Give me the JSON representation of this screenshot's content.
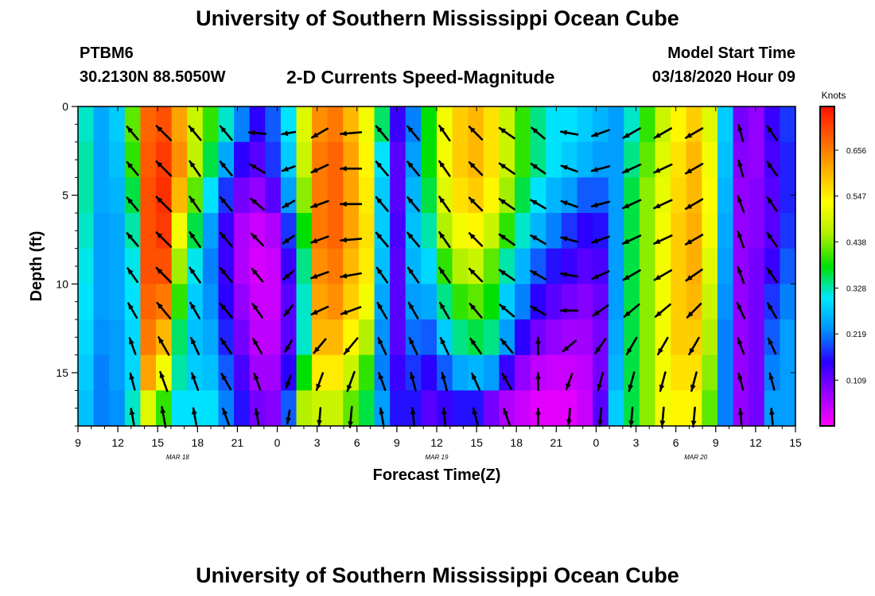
{
  "header": {
    "title": "University of Southern Mississippi Ocean Cube",
    "station_id": "PTBM6",
    "station_coords": "30.2130N 88.5050W",
    "subtitle": "2-D Currents Speed-Magnitude",
    "model_start_label": "Model Start Time",
    "model_start_value": "03/18/2020 Hour 09"
  },
  "footer": {
    "title": "University of Southern Mississippi Ocean Cube"
  },
  "chart_data": {
    "type": "heatmap",
    "title": "2-D Currents Speed-Magnitude",
    "xlabel": "Forecast Time(Z)",
    "ylabel": "Depth (ft)",
    "x_range_hours": [
      0,
      54
    ],
    "x_ticks": [
      "9",
      "12",
      "15",
      "18",
      "21",
      "0",
      "3",
      "6",
      "9",
      "12",
      "15",
      "18",
      "21",
      "0",
      "3",
      "6",
      "9",
      "12",
      "15"
    ],
    "date_labels": [
      "MAR 18",
      "MAR 19",
      "MAR 20"
    ],
    "y_ticks": [
      "0",
      "5",
      "10",
      "15"
    ],
    "y_range": [
      0,
      18
    ],
    "y_inverted": true,
    "colorbar": {
      "label": "Knots",
      "ticks": [
        "0.656",
        "0.547",
        "0.438",
        "0.328",
        "0.219",
        "0.109"
      ],
      "range": [
        0,
        0.76
      ],
      "colors": [
        "#ff00ff",
        "#9a00ff",
        "#2800ff",
        "#0090ff",
        "#00e8ff",
        "#00e000",
        "#b0f000",
        "#ffff00",
        "#ffb000",
        "#ff6000",
        "#ff1000"
      ]
    },
    "speed_columns": [
      {
        "t": 0,
        "speeds": [
          0.32,
          0.33,
          0.33,
          0.32,
          0.31,
          0.3,
          0.29,
          0.28,
          0.27
        ]
      },
      {
        "t": 1,
        "speeds": [
          0.25,
          0.25,
          0.25,
          0.24,
          0.24,
          0.24,
          0.23,
          0.22,
          0.22
        ]
      },
      {
        "t": 2,
        "speeds": [
          0.28,
          0.27,
          0.26,
          0.25,
          0.25,
          0.25,
          0.24,
          0.24,
          0.23
        ]
      },
      {
        "t": 3,
        "speeds": [
          0.42,
          0.4,
          0.36,
          0.33,
          0.31,
          0.3,
          0.29,
          0.29,
          0.32
        ]
      },
      {
        "t": 4,
        "speeds": [
          0.68,
          0.69,
          0.7,
          0.7,
          0.7,
          0.68,
          0.66,
          0.62,
          0.5
        ]
      },
      {
        "t": 5,
        "speeds": [
          0.7,
          0.72,
          0.73,
          0.72,
          0.7,
          0.66,
          0.6,
          0.52,
          0.4
        ]
      },
      {
        "t": 6,
        "speeds": [
          0.62,
          0.64,
          0.6,
          0.52,
          0.45,
          0.4,
          0.35,
          0.33,
          0.3
        ]
      },
      {
        "t": 7,
        "speeds": [
          0.48,
          0.47,
          0.42,
          0.36,
          0.31,
          0.28,
          0.27,
          0.28,
          0.3
        ]
      },
      {
        "t": 8,
        "speeds": [
          0.4,
          0.36,
          0.3,
          0.24,
          0.22,
          0.23,
          0.25,
          0.27,
          0.3
        ]
      },
      {
        "t": 9,
        "speeds": [
          0.32,
          0.25,
          0.18,
          0.14,
          0.14,
          0.15,
          0.17,
          0.2,
          0.22
        ]
      },
      {
        "t": 10,
        "speeds": [
          0.22,
          0.15,
          0.1,
          0.06,
          0.06,
          0.08,
          0.1,
          0.13,
          0.16
        ]
      },
      {
        "t": 11,
        "speeds": [
          0.15,
          0.12,
          0.08,
          0.04,
          0.03,
          0.04,
          0.05,
          0.07,
          0.1
        ]
      },
      {
        "t": 12,
        "speeds": [
          0.2,
          0.18,
          0.12,
          0.06,
          0.04,
          0.04,
          0.05,
          0.07,
          0.09
        ]
      },
      {
        "t": 13,
        "speeds": [
          0.3,
          0.28,
          0.24,
          0.18,
          0.14,
          0.12,
          0.12,
          0.15,
          0.2
        ]
      },
      {
        "t": 14,
        "speeds": [
          0.5,
          0.48,
          0.44,
          0.38,
          0.34,
          0.32,
          0.32,
          0.38,
          0.46
        ]
      },
      {
        "t": 15,
        "speeds": [
          0.64,
          0.66,
          0.66,
          0.66,
          0.64,
          0.62,
          0.6,
          0.55,
          0.48
        ]
      },
      {
        "t": 16,
        "speeds": [
          0.66,
          0.68,
          0.68,
          0.68,
          0.66,
          0.64,
          0.6,
          0.55,
          0.48
        ]
      },
      {
        "t": 17,
        "speeds": [
          0.6,
          0.62,
          0.62,
          0.62,
          0.6,
          0.58,
          0.54,
          0.48,
          0.42
        ]
      },
      {
        "t": 18,
        "speeds": [
          0.52,
          0.54,
          0.55,
          0.56,
          0.55,
          0.52,
          0.46,
          0.4,
          0.36
        ]
      },
      {
        "t": 19,
        "speeds": [
          0.35,
          0.3,
          0.28,
          0.28,
          0.27,
          0.25,
          0.23,
          0.22,
          0.24
        ]
      },
      {
        "t": 20,
        "speeds": [
          0.14,
          0.12,
          0.12,
          0.13,
          0.12,
          0.12,
          0.12,
          0.14,
          0.16
        ]
      },
      {
        "t": 21,
        "speeds": [
          0.22,
          0.24,
          0.26,
          0.27,
          0.26,
          0.24,
          0.21,
          0.18,
          0.16
        ]
      },
      {
        "t": 22,
        "speeds": [
          0.38,
          0.38,
          0.36,
          0.33,
          0.29,
          0.25,
          0.2,
          0.15,
          0.12
        ]
      },
      {
        "t": 23,
        "speeds": [
          0.52,
          0.52,
          0.5,
          0.46,
          0.4,
          0.34,
          0.28,
          0.2,
          0.14
        ]
      },
      {
        "t": 24,
        "speeds": [
          0.58,
          0.58,
          0.56,
          0.52,
          0.46,
          0.4,
          0.34,
          0.25,
          0.16
        ]
      },
      {
        "t": 25,
        "speeds": [
          0.6,
          0.6,
          0.58,
          0.54,
          0.48,
          0.42,
          0.36,
          0.26,
          0.16
        ]
      },
      {
        "t": 26,
        "speeds": [
          0.56,
          0.56,
          0.54,
          0.48,
          0.42,
          0.38,
          0.34,
          0.24,
          0.1
        ]
      },
      {
        "t": 27,
        "speeds": [
          0.48,
          0.48,
          0.45,
          0.4,
          0.33,
          0.28,
          0.24,
          0.14,
          0.06
        ]
      },
      {
        "t": 28,
        "speeds": [
          0.4,
          0.4,
          0.36,
          0.32,
          0.26,
          0.22,
          0.15,
          0.08,
          0.04
        ]
      },
      {
        "t": 29,
        "speeds": [
          0.34,
          0.34,
          0.3,
          0.26,
          0.2,
          0.15,
          0.1,
          0.05,
          0.02
        ]
      },
      {
        "t": 30,
        "speeds": [
          0.3,
          0.3,
          0.26,
          0.22,
          0.16,
          0.12,
          0.08,
          0.04,
          0.02
        ]
      },
      {
        "t": 31,
        "speeds": [
          0.3,
          0.28,
          0.24,
          0.18,
          0.14,
          0.1,
          0.07,
          0.04,
          0.02
        ]
      },
      {
        "t": 32,
        "speeds": [
          0.28,
          0.26,
          0.2,
          0.15,
          0.12,
          0.09,
          0.07,
          0.05,
          0.04
        ]
      },
      {
        "t": 33,
        "speeds": [
          0.26,
          0.24,
          0.2,
          0.16,
          0.13,
          0.11,
          0.1,
          0.1,
          0.12
        ]
      },
      {
        "t": 34,
        "speeds": [
          0.24,
          0.24,
          0.24,
          0.24,
          0.24,
          0.24,
          0.25,
          0.26,
          0.28
        ]
      },
      {
        "t": 35,
        "speeds": [
          0.32,
          0.34,
          0.36,
          0.36,
          0.36,
          0.36,
          0.36,
          0.36,
          0.36
        ]
      },
      {
        "t": 36,
        "speeds": [
          0.4,
          0.42,
          0.44,
          0.44,
          0.44,
          0.44,
          0.44,
          0.44,
          0.44
        ]
      },
      {
        "t": 37,
        "speeds": [
          0.48,
          0.5,
          0.51,
          0.52,
          0.52,
          0.52,
          0.52,
          0.52,
          0.52
        ]
      },
      {
        "t": 38,
        "speeds": [
          0.54,
          0.56,
          0.57,
          0.58,
          0.58,
          0.58,
          0.58,
          0.56,
          0.54
        ]
      },
      {
        "t": 39,
        "speeds": [
          0.58,
          0.6,
          0.6,
          0.61,
          0.61,
          0.6,
          0.58,
          0.56,
          0.54
        ]
      },
      {
        "t": 40,
        "speeds": [
          0.5,
          0.52,
          0.53,
          0.52,
          0.5,
          0.48,
          0.46,
          0.44,
          0.42
        ]
      },
      {
        "t": 41,
        "speeds": [
          0.28,
          0.27,
          0.26,
          0.25,
          0.24,
          0.23,
          0.22,
          0.22,
          0.22
        ]
      },
      {
        "t": 42,
        "speeds": [
          0.1,
          0.09,
          0.08,
          0.08,
          0.08,
          0.08,
          0.08,
          0.08,
          0.08
        ]
      },
      {
        "t": 43,
        "speeds": [
          0.08,
          0.08,
          0.09,
          0.09,
          0.1,
          0.1,
          0.1,
          0.1,
          0.1
        ]
      },
      {
        "t": 44,
        "speeds": [
          0.14,
          0.13,
          0.12,
          0.12,
          0.14,
          0.18,
          0.2,
          0.22,
          0.24
        ]
      },
      {
        "t": 45,
        "speeds": [
          0.18,
          0.17,
          0.17,
          0.18,
          0.2,
          0.22,
          0.24,
          0.24,
          0.24
        ]
      }
    ],
    "vector_rows_ft": [
      1.5,
      3.5,
      5.5,
      7.5,
      9.5,
      11.5,
      13.5,
      15.5,
      17.5
    ],
    "vector_columns": [
      {
        "t": 3,
        "dirs": [
          -40,
          -40,
          -40,
          -40,
          -35,
          -30,
          -20,
          -15,
          -10
        ],
        "len": 0.7
      },
      {
        "t": 5,
        "dirs": [
          -45,
          -45,
          -45,
          -45,
          -45,
          -40,
          -30,
          -20,
          -10
        ],
        "len": 0.85
      },
      {
        "t": 7,
        "dirs": [
          -40,
          -35,
          -35,
          -35,
          -35,
          -30,
          -25,
          -20,
          -10
        ],
        "len": 0.75
      },
      {
        "t": 9,
        "dirs": [
          -40,
          -40,
          -40,
          -40,
          -40,
          -40,
          -35,
          -30,
          -20
        ],
        "len": 0.75
      },
      {
        "t": 11,
        "dirs": [
          -85,
          -60,
          -50,
          -45,
          -40,
          -35,
          -30,
          -20,
          -10
        ],
        "len": 0.7
      },
      {
        "t": 13,
        "dirs": [
          -100,
          -110,
          -120,
          -125,
          -130,
          -140,
          -150,
          -160,
          -170
        ],
        "len": 0.55
      },
      {
        "t": 15,
        "dirs": [
          -120,
          -115,
          -110,
          -110,
          -110,
          -115,
          -140,
          -160,
          -175
        ],
        "len": 0.75
      },
      {
        "t": 17,
        "dirs": [
          -95,
          -90,
          -90,
          -95,
          -100,
          -110,
          -140,
          -160,
          -175
        ],
        "len": 0.85
      },
      {
        "t": 19,
        "dirs": [
          -40,
          -40,
          -40,
          -40,
          -35,
          -30,
          -25,
          -20,
          -10
        ],
        "len": 0.75
      },
      {
        "t": 21,
        "dirs": [
          -40,
          -40,
          -40,
          -40,
          -35,
          -30,
          -25,
          -15,
          -5
        ],
        "len": 0.75
      },
      {
        "t": 23,
        "dirs": [
          -35,
          -35,
          -35,
          -35,
          -35,
          -30,
          -25,
          -15,
          -5
        ],
        "len": 0.75
      },
      {
        "t": 25,
        "dirs": [
          -45,
          -45,
          -45,
          -45,
          -45,
          -40,
          -35,
          -25,
          -15
        ],
        "len": 0.75
      },
      {
        "t": 27,
        "dirs": [
          -55,
          -55,
          -55,
          -55,
          -55,
          -50,
          -40,
          -30,
          -20
        ],
        "len": 0.75
      },
      {
        "t": 29,
        "dirs": [
          -50,
          -55,
          -60,
          -60,
          -60,
          -60,
          0,
          0,
          0
        ],
        "len": 0.7
      },
      {
        "t": 31,
        "dirs": [
          -80,
          -70,
          -70,
          -75,
          -80,
          -90,
          -130,
          -160,
          -175
        ],
        "len": 0.7
      },
      {
        "t": 33,
        "dirs": [
          -110,
          -105,
          -105,
          -110,
          -115,
          -125,
          -145,
          -165,
          -175
        ],
        "len": 0.75
      },
      {
        "t": 35,
        "dirs": [
          -120,
          -115,
          -115,
          -115,
          -120,
          -130,
          -150,
          -165,
          -175
        ],
        "len": 0.8
      },
      {
        "t": 37,
        "dirs": [
          -120,
          -115,
          -115,
          -115,
          -120,
          -130,
          -150,
          -165,
          -175
        ],
        "len": 0.8
      },
      {
        "t": 39,
        "dirs": [
          -120,
          -120,
          -120,
          -120,
          -125,
          -135,
          -150,
          -165,
          -175
        ],
        "len": 0.8
      },
      {
        "t": 42,
        "dirs": [
          -15,
          -15,
          -20,
          -20,
          -20,
          -25,
          -20,
          -15,
          -5
        ],
        "len": 0.7
      },
      {
        "t": 44,
        "dirs": [
          -35,
          -35,
          -35,
          -35,
          -35,
          -30,
          -25,
          -15,
          -5
        ],
        "len": 0.7
      }
    ]
  }
}
